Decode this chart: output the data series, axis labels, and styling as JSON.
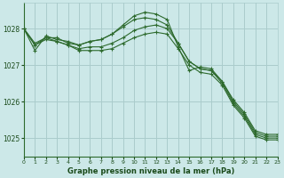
{
  "title": "Graphe pression niveau de la mer (hPa)",
  "bg_color": "#cce8e8",
  "line_color": "#2d6a2d",
  "grid_color": "#aacccc",
  "text_color": "#1a4a1a",
  "xlim": [
    0,
    23
  ],
  "ylim": [
    1024.5,
    1028.7
  ],
  "yticks": [
    1025,
    1026,
    1027,
    1028
  ],
  "xticks": [
    0,
    1,
    2,
    3,
    4,
    5,
    6,
    7,
    8,
    9,
    10,
    11,
    12,
    13,
    14,
    15,
    16,
    17,
    18,
    19,
    20,
    21,
    22,
    23
  ],
  "series": [
    [
      1028.0,
      1027.55,
      1027.75,
      1027.75,
      1027.6,
      1027.55,
      1027.65,
      1027.7,
      1027.85,
      1028.05,
      1028.25,
      1028.3,
      1028.25,
      1028.1,
      1027.6,
      1027.1,
      1026.9,
      1026.85,
      1026.55,
      1026.0,
      1025.65,
      1025.15,
      1025.05,
      1025.05
    ],
    [
      1028.0,
      1027.55,
      1027.7,
      1027.65,
      1027.55,
      1027.45,
      1027.5,
      1027.5,
      1027.6,
      1027.75,
      1027.95,
      1028.05,
      1028.1,
      1028.0,
      1027.6,
      1027.1,
      1026.9,
      1026.85,
      1026.5,
      1025.95,
      1025.6,
      1025.1,
      1025.0,
      1025.0
    ],
    [
      1028.0,
      1027.6,
      1027.75,
      1027.65,
      1027.55,
      1027.4,
      1027.4,
      1027.4,
      1027.45,
      1027.6,
      1027.75,
      1027.85,
      1027.9,
      1027.85,
      1027.45,
      1027.0,
      1026.8,
      1026.75,
      1026.45,
      1025.9,
      1025.55,
      1025.05,
      1024.95,
      1024.95
    ],
    [
      1028.0,
      1027.4,
      1027.8,
      1027.7,
      1027.65,
      1027.55,
      1027.65,
      1027.7,
      1027.85,
      1028.1,
      1028.35,
      1028.45,
      1028.4,
      1028.25,
      1027.5,
      1026.85,
      1026.95,
      1026.9,
      1026.55,
      1026.05,
      1025.7,
      1025.2,
      1025.1,
      1025.1
    ]
  ]
}
